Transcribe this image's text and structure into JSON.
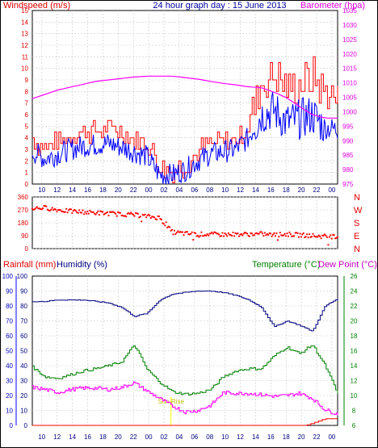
{
  "chart_data": [
    {
      "type": "line",
      "title": "24 hour graph day : 15 June 2013",
      "left_axis_label": "Windspeed (m/s)",
      "right_axis_label": "Barometer (hpa)",
      "x_ticks": [
        "10",
        "12",
        "14",
        "16",
        "18",
        "20",
        "22",
        "00",
        "02",
        "04",
        "06",
        "08",
        "10",
        "12",
        "14",
        "16",
        "18",
        "20",
        "22",
        "00"
      ],
      "y_left_range": [
        0,
        15
      ],
      "y_left_ticks": [
        "0",
        "1",
        "2",
        "3",
        "4",
        "5",
        "6",
        "7",
        "8",
        "9",
        "10",
        "11",
        "12",
        "13",
        "14",
        "15"
      ],
      "y_right_range": [
        975,
        1035
      ],
      "y_right_ticks": [
        "975",
        "980",
        "985",
        "990",
        "995",
        "1000",
        "1005",
        "1010",
        "1015",
        "1020",
        "1025",
        "1030",
        "1035"
      ],
      "grid": true,
      "series": [
        {
          "color": "#ff0000",
          "x": [
            0,
            1,
            2,
            3,
            4,
            5,
            6,
            7,
            8,
            9,
            10,
            11,
            12,
            13,
            14,
            15,
            16,
            17,
            18,
            19,
            20,
            21,
            22,
            23,
            24
          ],
          "values": [
            3.8,
            3.2,
            3.6,
            4.2,
            4.5,
            4.6,
            4.8,
            4.5,
            3.9,
            3.5,
            1.5,
            1.2,
            1.6,
            2.8,
            3.4,
            3.6,
            3.9,
            5.2,
            8.6,
            9.5,
            8.3,
            8.5,
            9.2,
            8.0,
            7.2
          ]
        },
        {
          "color": "#0000ff",
          "x": [
            0,
            1,
            2,
            3,
            4,
            5,
            6,
            7,
            8,
            9,
            10,
            11,
            12,
            13,
            14,
            15,
            16,
            17,
            18,
            19,
            20,
            21,
            22,
            23,
            24
          ],
          "values": [
            2.8,
            2.2,
            2.6,
            3.0,
            3.3,
            3.4,
            3.5,
            3.2,
            2.8,
            2.4,
            0.8,
            0.8,
            1.2,
            2.0,
            2.6,
            2.8,
            3.0,
            4.0,
            6.0,
            6.4,
            5.3,
            5.6,
            6.0,
            4.9,
            4.7
          ]
        },
        {
          "color": "#ff00ff",
          "axis": "right",
          "x": [
            0,
            1,
            2,
            3,
            4,
            5,
            6,
            7,
            8,
            9,
            10,
            11,
            12,
            13,
            14,
            15,
            16,
            17,
            18,
            19,
            20,
            21,
            22,
            23,
            24
          ],
          "values": [
            1004.5,
            1006,
            1007.5,
            1008.5,
            1009.5,
            1010.5,
            1011,
            1011.5,
            1012,
            1012.3,
            1012.3,
            1012.3,
            1011.8,
            1011.3,
            1010.5,
            1009.8,
            1009.3,
            1008.6,
            1008.3,
            1006.8,
            1004.8,
            1001.8,
            999,
            997.8,
            997.8
          ]
        }
      ]
    },
    {
      "type": "scatter",
      "right_axis_labels": [
        "N",
        "W",
        "S",
        "E",
        "N"
      ],
      "x_ticks": [
        "10",
        "12",
        "14",
        "16",
        "18",
        "20",
        "22",
        "00",
        "02",
        "04",
        "06",
        "08",
        "10",
        "12",
        "14",
        "16",
        "18",
        "20",
        "22",
        "00"
      ],
      "y_range": [
        0,
        360
      ],
      "y_ticks": [
        "0",
        "90",
        "180",
        "270",
        "360"
      ],
      "grid": true,
      "series": [
        {
          "color": "#ff0000",
          "x": [
            0,
            1,
            2,
            3,
            4,
            5,
            6,
            7,
            8,
            9,
            10,
            11,
            12,
            13,
            14,
            15,
            16,
            17,
            18,
            19,
            20,
            21,
            22,
            23,
            24
          ],
          "values": [
            280,
            285,
            270,
            260,
            255,
            250,
            245,
            240,
            235,
            225,
            215,
            115,
            105,
            100,
            100,
            98,
            100,
            100,
            102,
            95,
            100,
            95,
            90,
            85,
            80
          ]
        }
      ]
    },
    {
      "type": "line",
      "left_axis_label": "Rainfall (mm)",
      "left_axis_label_2": "Humidity (%)",
      "right_axis_label": "Temperature (°C)",
      "right_axis_label_2": "Dew Point (°C)",
      "annotations": [
        "Sun Rise"
      ],
      "x_ticks": [
        "10",
        "12",
        "14",
        "16",
        "18",
        "20",
        "22",
        "00",
        "02",
        "04",
        "06",
        "08",
        "10",
        "12",
        "14",
        "16",
        "18",
        "20",
        "22",
        "00"
      ],
      "y_rain_ticks": [
        "0",
        "10",
        "20",
        "30",
        "40",
        "50",
        "60",
        "70",
        "80",
        "90",
        "100"
      ],
      "y_humidity_ticks": [
        "0",
        "10",
        "20",
        "30",
        "40",
        "50",
        "60",
        "70",
        "80",
        "90",
        "100"
      ],
      "y_temp_range": [
        6,
        26
      ],
      "y_temp_ticks": [
        "6",
        "8",
        "10",
        "12",
        "14",
        "16",
        "18",
        "20",
        "22",
        "24",
        "26"
      ],
      "grid": true,
      "series": [
        {
          "color": "#000080",
          "axis": "humidity",
          "x": [
            0,
            1,
            2,
            3,
            4,
            5,
            6,
            7,
            8,
            9,
            10,
            11,
            12,
            13,
            14,
            15,
            16,
            17,
            18,
            19,
            20,
            21,
            22,
            23,
            24
          ],
          "values": [
            83,
            83,
            84,
            84,
            84,
            83,
            82,
            79,
            73,
            75,
            84,
            88,
            89,
            90,
            90,
            89,
            87,
            84,
            79,
            66,
            70,
            67,
            63,
            80,
            85
          ]
        },
        {
          "color": "#008000",
          "axis": "temperature",
          "x": [
            0,
            1,
            2,
            3,
            4,
            5,
            6,
            7,
            8,
            9,
            10,
            11,
            12,
            13,
            14,
            15,
            16,
            17,
            18,
            19,
            20,
            21,
            22,
            23,
            24
          ],
          "values": [
            13.8,
            12.5,
            12.3,
            12.8,
            13.3,
            13.6,
            14.0,
            14.5,
            16.8,
            13.5,
            11.8,
            10.5,
            10.2,
            10.3,
            10.8,
            12.5,
            13.3,
            13.6,
            13.6,
            15.3,
            16.5,
            15.6,
            16.8,
            14.0,
            10.2
          ]
        },
        {
          "color": "#ff00ff",
          "axis": "temperature",
          "x": [
            0,
            1,
            2,
            3,
            4,
            5,
            6,
            7,
            8,
            9,
            10,
            11,
            12,
            13,
            14,
            15,
            16,
            17,
            18,
            19,
            20,
            21,
            22,
            23,
            24
          ],
          "values": [
            11.1,
            10.8,
            10.4,
            10.8,
            11.0,
            11.0,
            10.8,
            11.1,
            11.7,
            10.6,
            9.6,
            8.6,
            7.8,
            8.0,
            8.7,
            10.4,
            10.3,
            10.3,
            10.1,
            9.9,
            10.0,
            10.3,
            9.6,
            8.1,
            7.5
          ]
        },
        {
          "color": "#ff0000",
          "axis": "rain",
          "x": [
            0,
            21.5,
            22,
            23,
            24
          ],
          "values": [
            0,
            0,
            1.5,
            4.5,
            4.5
          ]
        }
      ]
    }
  ],
  "colors": {
    "wind_avg": "#0000ff",
    "wind_gust": "#ff0000",
    "barometer": "#ff00ff",
    "direction": "#ff0000",
    "humidity": "#000080",
    "temperature": "#008000",
    "dewpoint": "#ff00ff",
    "rain": "#ff0000",
    "sunrise": "#ffff00"
  }
}
